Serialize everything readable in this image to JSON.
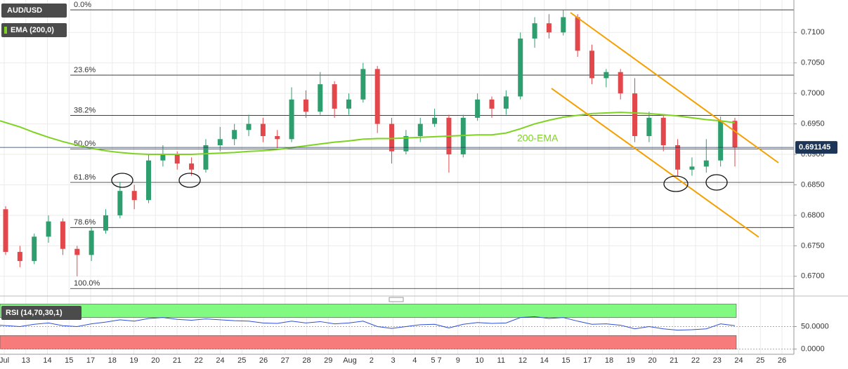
{
  "chart_data": [
    {
      "type": "candlestick",
      "title": "AUD/USD",
      "xlabels": [
        "Jul",
        "13",
        "14",
        "15",
        "17",
        "18",
        "19",
        "20",
        "21",
        "22",
        "24",
        "25",
        "26",
        "27",
        "28",
        "29",
        "Aug",
        "2",
        "3",
        "4",
        "5 7",
        "9",
        "10",
        "11",
        "12",
        "14",
        "15",
        "17",
        "18",
        "19",
        "20",
        "21",
        "22",
        "23",
        "24",
        "25",
        "26"
      ],
      "open": [
        0.681,
        0.674,
        0.6725,
        0.6765,
        0.679,
        0.6745,
        0.6735,
        0.6775,
        0.68,
        0.684,
        0.6825,
        0.689,
        0.69,
        0.6885,
        0.6875,
        0.6915,
        0.6925,
        0.694,
        0.695,
        0.693,
        0.6925,
        0.699,
        0.697,
        0.7015,
        0.6975,
        0.699,
        0.704,
        0.695,
        0.6905,
        0.693,
        0.695,
        0.696,
        0.69,
        0.696,
        0.699,
        0.6975,
        0.6995,
        0.709,
        0.7115,
        0.71,
        0.7125,
        0.707,
        0.7025,
        0.7035,
        0.7,
        0.693,
        0.696,
        0.6915,
        0.6875,
        0.688,
        0.689,
        0.6955
      ],
      "high": [
        0.6815,
        0.675,
        0.677,
        0.68,
        0.6795,
        0.675,
        0.678,
        0.681,
        0.6855,
        0.685,
        0.69,
        0.6915,
        0.6905,
        0.6895,
        0.6925,
        0.6945,
        0.695,
        0.6965,
        0.696,
        0.694,
        0.701,
        0.7005,
        0.7035,
        0.702,
        0.7,
        0.705,
        0.7045,
        0.696,
        0.694,
        0.696,
        0.6975,
        0.6965,
        0.6965,
        0.7,
        0.6995,
        0.7005,
        0.71,
        0.7125,
        0.713,
        0.7137,
        0.713,
        0.708,
        0.704,
        0.704,
        0.7025,
        0.697,
        0.6965,
        0.6925,
        0.6895,
        0.6925,
        0.6962,
        0.696
      ],
      "low": [
        0.6735,
        0.6715,
        0.672,
        0.6755,
        0.6735,
        0.67,
        0.6725,
        0.677,
        0.6795,
        0.681,
        0.682,
        0.688,
        0.6875,
        0.6865,
        0.687,
        0.6905,
        0.6915,
        0.693,
        0.692,
        0.691,
        0.692,
        0.696,
        0.6965,
        0.696,
        0.6965,
        0.6985,
        0.6935,
        0.6885,
        0.69,
        0.692,
        0.6945,
        0.687,
        0.6895,
        0.6955,
        0.696,
        0.6965,
        0.699,
        0.7075,
        0.709,
        0.7095,
        0.706,
        0.7015,
        0.701,
        0.699,
        0.692,
        0.692,
        0.6905,
        0.6865,
        0.6865,
        0.687,
        0.688,
        0.688
      ],
      "close": [
        0.674,
        0.6725,
        0.6765,
        0.679,
        0.6745,
        0.6735,
        0.6775,
        0.68,
        0.684,
        0.6825,
        0.689,
        0.69,
        0.6885,
        0.6875,
        0.6915,
        0.6925,
        0.694,
        0.695,
        0.693,
        0.6925,
        0.699,
        0.697,
        0.7015,
        0.6975,
        0.699,
        0.704,
        0.695,
        0.6905,
        0.693,
        0.695,
        0.696,
        0.69,
        0.696,
        0.699,
        0.6975,
        0.6995,
        0.709,
        0.7115,
        0.71,
        0.7125,
        0.707,
        0.7025,
        0.7035,
        0.7,
        0.693,
        0.696,
        0.6915,
        0.6875,
        0.688,
        0.689,
        0.6955,
        0.6911
      ],
      "up_color": "#2e9e6e",
      "down_color": "#e2474b",
      "ema": {
        "name": "EMA (200,0)",
        "color": "#7ed321",
        "label": "200-EMA",
        "values": [
          0.6955,
          0.6945,
          0.6936,
          0.6928,
          0.6921,
          0.6915,
          0.691,
          0.6906,
          0.6903,
          0.6901,
          0.69,
          0.69,
          0.69,
          0.69,
          0.6901,
          0.6902,
          0.6903,
          0.6905,
          0.6906,
          0.6908,
          0.6911,
          0.6914,
          0.6917,
          0.692,
          0.6922,
          0.6925,
          0.6926,
          0.6926,
          0.6927,
          0.6928,
          0.6929,
          0.693,
          0.6931,
          0.6932,
          0.6932,
          0.6935,
          0.6942,
          0.695,
          0.6956,
          0.6961,
          0.6964,
          0.6967,
          0.6968,
          0.6969,
          0.6968,
          0.6967,
          0.6965,
          0.6963,
          0.696,
          0.6957,
          0.6955,
          0.6952
        ]
      },
      "fib_levels": [
        {
          "label": "0.0%",
          "value": 0.7137
        },
        {
          "label": "23.6%",
          "value": 0.703
        },
        {
          "label": "38.2%",
          "value": 0.6964
        },
        {
          "label": "50.0%",
          "value": 0.6909
        },
        {
          "label": "61.8%",
          "value": 0.6854
        },
        {
          "label": "78.6%",
          "value": 0.678
        },
        {
          "label": "100.0%",
          "value": 0.668
        }
      ],
      "last_price": 0.691145,
      "ylim": [
        0.66676,
        0.71532
      ],
      "yticks": [
        {
          "value": 0.67,
          "label": "0.6700"
        },
        {
          "value": 0.675,
          "label": "0.6750"
        },
        {
          "value": 0.68,
          "label": "0.6800"
        },
        {
          "value": 0.685,
          "label": "0.6850"
        },
        {
          "value": 0.69,
          "label": "0.6900"
        },
        {
          "value": 0.695,
          "label": "0.6950"
        },
        {
          "value": 0.7,
          "label": "0.7000"
        },
        {
          "value": 0.705,
          "label": "0.7050"
        },
        {
          "value": 0.71,
          "label": "0.7100"
        }
      ],
      "grid": true
    },
    {
      "type": "line",
      "title": "RSI (14,70,30,1)",
      "color": "#2f4fd8",
      "values": [
        53,
        50,
        55,
        58,
        52,
        50,
        56,
        60,
        65,
        62,
        68,
        70,
        66,
        64,
        67,
        65,
        63,
        62,
        58,
        57,
        62,
        58,
        61,
        56,
        58,
        62,
        50,
        46,
        50,
        54,
        55,
        47,
        55,
        59,
        57,
        58,
        70,
        72,
        68,
        70,
        62,
        55,
        56,
        53,
        45,
        50,
        45,
        42,
        43,
        45,
        56,
        52
      ],
      "bands": [
        {
          "from": 70,
          "to": 100,
          "color": "#80fa80"
        },
        {
          "from": 0,
          "to": 30,
          "color": "#f77b7b"
        }
      ],
      "ylim": [
        -10,
        110
      ],
      "yticks": [
        {
          "value": 0,
          "label": "0.0000"
        },
        {
          "value": 50,
          "label": "50.0000"
        }
      ]
    }
  ]
}
